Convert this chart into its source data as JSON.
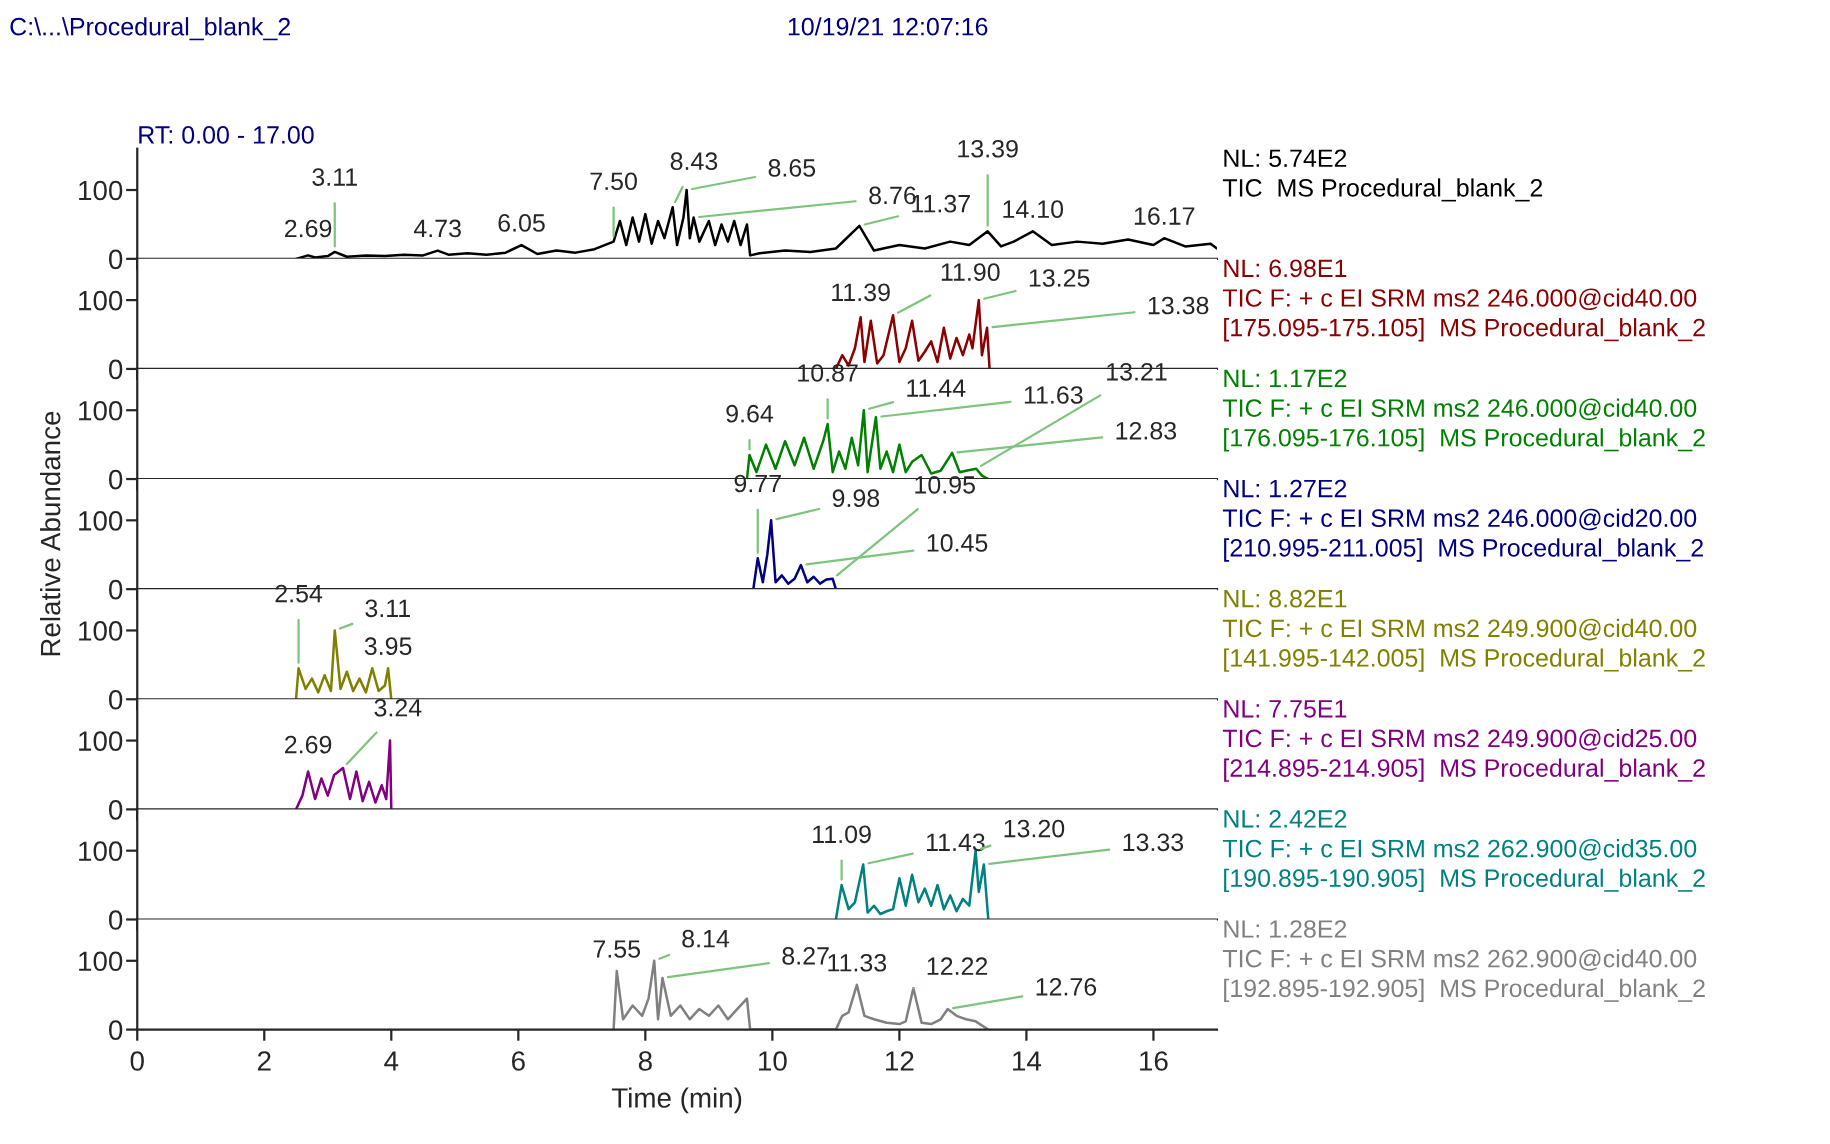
{
  "chart_data": [
    {
      "type": "line",
      "title": "C:\\...\\Procedural_blank_2",
      "subtitle": "10/19/21 12:07:16",
      "xlim": [
        0,
        17
      ],
      "xticks": [
        0,
        2,
        4,
        6,
        8,
        10,
        12,
        14,
        16
      ],
      "ylim": [
        0,
        160
      ],
      "yticks": [
        0,
        100
      ],
      "tick_labels": "y",
      "x": [
        2.5,
        2.69,
        2.8,
        3.0,
        3.11,
        3.3,
        3.6,
        3.9,
        4.2,
        4.5,
        4.73,
        4.9,
        5.2,
        5.5,
        5.8,
        6.05,
        6.3,
        6.6,
        6.9,
        7.2,
        7.5,
        7.6,
        7.7,
        7.8,
        7.9,
        8.0,
        8.1,
        8.2,
        8.3,
        8.43,
        8.5,
        8.6,
        8.65,
        8.7,
        8.76,
        8.85,
        9.0,
        9.1,
        9.2,
        9.3,
        9.4,
        9.5,
        9.6,
        9.65,
        9.8,
        10.2,
        10.6,
        11.0,
        11.37,
        11.6,
        12.0,
        12.4,
        12.8,
        13.1,
        13.39,
        13.6,
        13.8,
        14.1,
        14.4,
        14.8,
        15.2,
        15.6,
        16.0,
        16.17,
        16.5,
        16.9,
        17.0
      ],
      "series": [
        {
          "name": "NL: 5.74E2\nTIC  MS Procedural_blank_2",
          "color": "#000000",
          "values": [
            0,
            5,
            2,
            4,
            10,
            3,
            5,
            4,
            6,
            5,
            12,
            6,
            8,
            6,
            9,
            20,
            7,
            12,
            9,
            14,
            25,
            55,
            20,
            60,
            25,
            65,
            22,
            55,
            30,
            75,
            20,
            60,
            100,
            30,
            60,
            25,
            55,
            20,
            50,
            25,
            55,
            20,
            50,
            5,
            8,
            12,
            10,
            15,
            48,
            12,
            20,
            15,
            25,
            20,
            40,
            18,
            25,
            40,
            20,
            25,
            22,
            28,
            20,
            30,
            18,
            22,
            15
          ]
        }
      ],
      "annotations": [
        "RT: 0.00 - 17.00",
        {
          "text": "2.69",
          "x": 2.69,
          "y": 5
        },
        {
          "text": "3.11",
          "x": 3.11,
          "y": 10
        },
        {
          "text": "4.73",
          "x": 4.73,
          "y": 12
        },
        {
          "text": "6.05",
          "x": 6.05,
          "y": 20
        },
        {
          "text": "7.50",
          "x": 7.5,
          "y": 25
        },
        {
          "text": "8.43",
          "x": 8.43,
          "y": 75
        },
        {
          "text": "8.65",
          "x": 8.65,
          "y": 100
        },
        {
          "text": "8.76",
          "x": 8.76,
          "y": 60
        },
        {
          "text": "11.37",
          "x": 11.37,
          "y": 48
        },
        {
          "text": "13.39",
          "x": 13.39,
          "y": 40
        },
        {
          "text": "14.10",
          "x": 14.1,
          "y": 40
        },
        {
          "text": "16.17",
          "x": 16.17,
          "y": 30
        }
      ]
    },
    {
      "type": "line",
      "xlim": [
        0,
        17
      ],
      "xticks": [
        0,
        2,
        4,
        6,
        8,
        10,
        12,
        14,
        16
      ],
      "ylim": [
        0,
        160
      ],
      "yticks": [
        0,
        100
      ],
      "tick_labels": "y",
      "x": [
        11.0,
        11.1,
        11.2,
        11.3,
        11.39,
        11.45,
        11.55,
        11.65,
        11.75,
        11.9,
        12.0,
        12.1,
        12.2,
        12.3,
        12.4,
        12.5,
        12.6,
        12.7,
        12.8,
        12.9,
        13.0,
        13.1,
        13.15,
        13.25,
        13.3,
        13.38,
        13.42
      ],
      "series": [
        {
          "name": "NL: 6.98E1\nTIC F: + c EI SRM ms2 246.000@cid40.00\n[175.095-175.105]  MS Procedural_blank_2",
          "color": "#8b0000",
          "values": [
            0,
            20,
            5,
            30,
            75,
            10,
            70,
            8,
            20,
            78,
            10,
            30,
            70,
            12,
            25,
            40,
            10,
            60,
            15,
            45,
            20,
            50,
            30,
            100,
            20,
            60,
            0
          ]
        }
      ],
      "annotations": [
        {
          "text": "11.39",
          "x": 11.39,
          "y": 75
        },
        {
          "text": "11.90",
          "x": 11.9,
          "y": 78
        },
        {
          "text": "13.25",
          "x": 13.25,
          "y": 100
        },
        {
          "text": "13.38",
          "x": 13.38,
          "y": 60
        }
      ]
    },
    {
      "type": "line",
      "xlim": [
        0,
        17
      ],
      "xticks": [
        0,
        2,
        4,
        6,
        8,
        10,
        12,
        14,
        16
      ],
      "ylim": [
        0,
        160
      ],
      "yticks": [
        0,
        100
      ],
      "tick_labels": "y",
      "x": [
        9.6,
        9.64,
        9.75,
        9.9,
        10.05,
        10.2,
        10.35,
        10.5,
        10.65,
        10.8,
        10.87,
        10.95,
        11.05,
        11.15,
        11.25,
        11.35,
        11.44,
        11.5,
        11.63,
        11.7,
        11.8,
        11.9,
        12.0,
        12.1,
        12.2,
        12.35,
        12.5,
        12.65,
        12.83,
        12.95,
        13.05,
        13.21,
        13.3,
        13.4
      ],
      "series": [
        {
          "name": "NL: 1.17E2\nTIC F: + c EI SRM ms2 246.000@cid40.00\n[176.095-176.105]  MS Procedural_blank_2",
          "color": "#008000",
          "values": [
            0,
            35,
            10,
            50,
            15,
            55,
            20,
            60,
            15,
            55,
            80,
            10,
            40,
            15,
            60,
            20,
            100,
            10,
            90,
            15,
            40,
            10,
            50,
            10,
            25,
            35,
            8,
            12,
            38,
            10,
            12,
            15,
            5,
            0
          ]
        }
      ],
      "annotations": [
        {
          "text": "9.64",
          "x": 9.64,
          "y": 35
        },
        {
          "text": "10.87",
          "x": 10.87,
          "y": 80
        },
        {
          "text": "11.44",
          "x": 11.44,
          "y": 100
        },
        {
          "text": "11.63",
          "x": 11.63,
          "y": 90
        },
        {
          "text": "12.83",
          "x": 12.83,
          "y": 38
        },
        {
          "text": "13.21",
          "x": 13.21,
          "y": 15
        }
      ]
    },
    {
      "type": "line",
      "xlim": [
        0,
        17
      ],
      "xticks": [
        0,
        2,
        4,
        6,
        8,
        10,
        12,
        14,
        16
      ],
      "ylim": [
        0,
        160
      ],
      "yticks": [
        0,
        100
      ],
      "tick_labels": "y",
      "ylabel": "Relative Abundance",
      "x": [
        9.7,
        9.77,
        9.85,
        9.92,
        9.98,
        10.05,
        10.15,
        10.25,
        10.35,
        10.45,
        10.55,
        10.65,
        10.75,
        10.85,
        10.95,
        11.0
      ],
      "series": [
        {
          "name": "NL: 1.27E2\nTIC F: + c EI SRM ms2 246.000@cid20.00\n[210.995-211.005]  MS Procedural_blank_2",
          "color": "#000080",
          "values": [
            0,
            45,
            10,
            50,
            100,
            10,
            20,
            8,
            15,
            35,
            10,
            18,
            8,
            14,
            15,
            0
          ]
        }
      ],
      "annotations": [
        {
          "text": "9.77",
          "x": 9.77,
          "y": 45
        },
        {
          "text": "9.98",
          "x": 9.98,
          "y": 100
        },
        {
          "text": "10.45",
          "x": 10.45,
          "y": 35
        },
        {
          "text": "10.95",
          "x": 10.95,
          "y": 15
        }
      ]
    },
    {
      "type": "line",
      "xlim": [
        0,
        17
      ],
      "xticks": [
        0,
        2,
        4,
        6,
        8,
        10,
        12,
        14,
        16
      ],
      "ylim": [
        0,
        160
      ],
      "yticks": [
        0,
        100
      ],
      "tick_labels": "y",
      "x": [
        2.5,
        2.54,
        2.65,
        2.75,
        2.85,
        2.95,
        3.05,
        3.11,
        3.2,
        3.3,
        3.4,
        3.5,
        3.6,
        3.7,
        3.8,
        3.9,
        3.95,
        4.0
      ],
      "series": [
        {
          "name": "NL: 8.82E1\nTIC F: + c EI SRM ms2 249.900@cid40.00\n[141.995-142.005]  MS Procedural_blank_2",
          "color": "#808000",
          "values": [
            0,
            45,
            15,
            30,
            10,
            35,
            12,
            100,
            15,
            40,
            12,
            30,
            10,
            45,
            12,
            20,
            45,
            0
          ]
        }
      ],
      "annotations": [
        {
          "text": "2.54",
          "x": 2.54,
          "y": 45
        },
        {
          "text": "3.11",
          "x": 3.11,
          "y": 100
        },
        {
          "text": "3.95",
          "x": 3.95,
          "y": 45
        }
      ]
    },
    {
      "type": "line",
      "xlim": [
        0,
        17
      ],
      "xticks": [
        0,
        2,
        4,
        6,
        8,
        10,
        12,
        14,
        16
      ],
      "ylim": [
        0,
        160
      ],
      "yticks": [
        0,
        100
      ],
      "tick_labels": "y",
      "x": [
        2.5,
        2.6,
        2.69,
        2.8,
        2.9,
        3.0,
        3.1,
        3.24,
        3.35,
        3.45,
        3.55,
        3.65,
        3.75,
        3.85,
        3.92,
        3.98,
        4.0
      ],
      "series": [
        {
          "name": "NL: 7.75E1\nTIC F: + c EI SRM ms2 249.900@cid25.00\n[214.895-214.905]  MS Procedural_blank_2",
          "color": "#800080",
          "values": [
            0,
            20,
            55,
            15,
            45,
            20,
            50,
            60,
            15,
            55,
            12,
            40,
            10,
            35,
            15,
            100,
            0
          ]
        }
      ],
      "annotations": [
        {
          "text": "2.69",
          "x": 2.69,
          "y": 55
        },
        {
          "text": "3.24",
          "x": 3.24,
          "y": 60
        }
      ]
    },
    {
      "type": "line",
      "xlim": [
        0,
        17
      ],
      "xticks": [
        0,
        2,
        4,
        6,
        8,
        10,
        12,
        14,
        16
      ],
      "ylim": [
        0,
        160
      ],
      "yticks": [
        0,
        100
      ],
      "tick_labels": "y",
      "x": [
        11.0,
        11.09,
        11.2,
        11.3,
        11.43,
        11.5,
        11.6,
        11.7,
        11.8,
        11.9,
        12.0,
        12.1,
        12.2,
        12.3,
        12.4,
        12.5,
        12.6,
        12.7,
        12.8,
        12.9,
        13.0,
        13.1,
        13.2,
        13.25,
        13.33,
        13.4
      ],
      "series": [
        {
          "name": "NL: 2.42E2\nTIC F: + c EI SRM ms2 262.900@cid35.00\n[190.895-190.905]  MS Procedural_blank_2",
          "color": "#008080",
          "values": [
            0,
            50,
            15,
            25,
            80,
            10,
            20,
            8,
            12,
            15,
            60,
            20,
            65,
            25,
            45,
            20,
            50,
            15,
            35,
            12,
            30,
            20,
            100,
            40,
            80,
            0
          ]
        }
      ],
      "annotations": [
        {
          "text": "11.09",
          "x": 11.09,
          "y": 50
        },
        {
          "text": "11.43",
          "x": 11.43,
          "y": 80
        },
        {
          "text": "13.20",
          "x": 13.2,
          "y": 100
        },
        {
          "text": "13.33",
          "x": 13.33,
          "y": 80
        }
      ]
    },
    {
      "type": "line",
      "xlim": [
        0,
        17
      ],
      "xticks": [
        0,
        2,
        4,
        6,
        8,
        10,
        12,
        14,
        16
      ],
      "ylim": [
        0,
        160
      ],
      "yticks": [
        0,
        100
      ],
      "xlabel": "Time (min)",
      "x": [
        7.5,
        7.55,
        7.65,
        7.8,
        7.95,
        8.05,
        8.14,
        8.2,
        8.27,
        8.4,
        8.55,
        8.7,
        8.85,
        9.0,
        9.15,
        9.3,
        9.45,
        9.6,
        9.65,
        11.0,
        11.1,
        11.2,
        11.33,
        11.45,
        11.6,
        11.8,
        12.0,
        12.1,
        12.22,
        12.35,
        12.5,
        12.65,
        12.76,
        12.9,
        13.05,
        13.2,
        13.4
      ],
      "series": [
        {
          "name": "NL: 1.28E2\nTIC F: + c EI SRM ms2 262.900@cid40.00\n[192.895-192.905]  MS Procedural_blank_2",
          "color": "#808080",
          "values": [
            0,
            85,
            15,
            35,
            20,
            45,
            100,
            15,
            75,
            20,
            35,
            15,
            30,
            20,
            35,
            15,
            30,
            45,
            0,
            0,
            20,
            25,
            65,
            20,
            15,
            10,
            8,
            12,
            60,
            10,
            8,
            15,
            30,
            20,
            15,
            12,
            0
          ]
        }
      ],
      "annotations": [
        {
          "text": "7.55",
          "x": 7.55,
          "y": 85
        },
        {
          "text": "8.14",
          "x": 8.14,
          "y": 100
        },
        {
          "text": "8.27",
          "x": 8.27,
          "y": 75
        },
        {
          "text": "11.33",
          "x": 11.33,
          "y": 65
        },
        {
          "text": "12.22",
          "x": 12.22,
          "y": 60
        },
        {
          "text": "12.76",
          "x": 12.76,
          "y": 30
        }
      ]
    }
  ]
}
